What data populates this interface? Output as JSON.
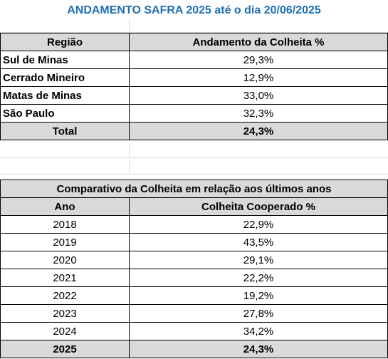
{
  "title": "ANDAMENTO SAFRA 2025 até o dia 20/06/2025",
  "colors": {
    "title": "#1f6fb2",
    "header_fill": "#d9d9d9",
    "grid": "#d9d9d9"
  },
  "region_table": {
    "headers": [
      "Região",
      "Andamento da Colheita %"
    ],
    "rows": [
      {
        "region": "Sul de Minas",
        "value": "29,3%"
      },
      {
        "region": "Cerrado Mineiro",
        "value": "12,9%"
      },
      {
        "region": "Matas de Minas",
        "value": "33,0%"
      },
      {
        "region": "São Paulo",
        "value": "32,3%"
      }
    ],
    "total": {
      "label": "Total",
      "value": "24,3%"
    }
  },
  "comparison_table": {
    "title": "Comparativo da Colheita em relação aos últimos anos",
    "headers": [
      "Ano",
      "Colheita Cooperado %"
    ],
    "rows": [
      {
        "year": "2018",
        "value": "22,9%"
      },
      {
        "year": "2019",
        "value": "43,5%"
      },
      {
        "year": "2020",
        "value": "29,1%"
      },
      {
        "year": "2021",
        "value": "22,2%"
      },
      {
        "year": "2022",
        "value": "19,2%"
      },
      {
        "year": "2023",
        "value": "27,8%"
      },
      {
        "year": "2024",
        "value": "34,2%"
      }
    ],
    "total": {
      "year": "2025",
      "value": "24,3%"
    }
  }
}
